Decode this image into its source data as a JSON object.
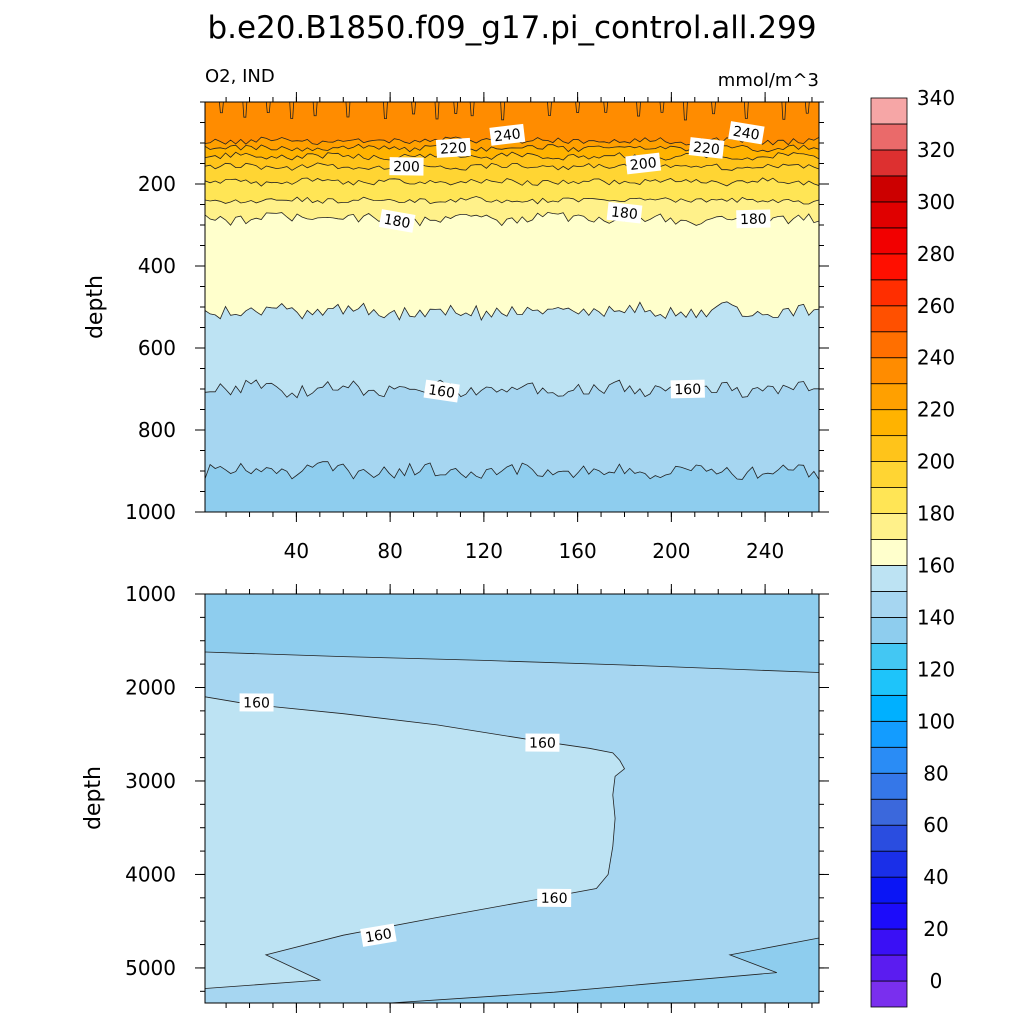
{
  "chart_data": {
    "type": "contour",
    "title": "b.e20.B1850.f09_g17.pi_control.all.299",
    "left_label": "O2, IND",
    "right_label": "mmol/m^3",
    "x_range": [
      1,
      263
    ],
    "x_ticks": [
      40,
      80,
      120,
      160,
      200,
      240
    ],
    "x_tick_labels": [
      "40",
      "80",
      "120",
      "160",
      "200",
      "240"
    ],
    "panels": [
      {
        "name": "upper",
        "ylabel": "depth",
        "y_range": [
          0,
          1000
        ],
        "y_reversed": true,
        "y_ticks": [
          200,
          400,
          600,
          800,
          1000
        ],
        "y_tick_labels": [
          "200",
          "400",
          "600",
          "800",
          "1000"
        ],
        "show_x_labels": true,
        "bands": [
          {
            "level": 250,
            "depth_bottom": 95,
            "color": "#ff8c00"
          },
          {
            "level": 240,
            "depth_bottom": 112,
            "color": "#ffa000"
          },
          {
            "level": 230,
            "depth_bottom": 132,
            "color": "#ffb300"
          },
          {
            "level": 220,
            "depth_bottom": 158,
            "color": "#ffc41a"
          },
          {
            "level": 210,
            "depth_bottom": 195,
            "color": "#ffd533"
          },
          {
            "level": 200,
            "depth_bottom": 240,
            "color": "#ffe555"
          },
          {
            "level": 190,
            "depth_bottom": 285,
            "color": "#fff18a"
          },
          {
            "level": 180,
            "depth_bottom": 510,
            "color": "#ffffcc"
          },
          {
            "level": 170,
            "depth_bottom": 700,
            "color": "#bde3f3"
          },
          {
            "level": 160,
            "depth_bottom": 900,
            "color": "#a6d6f1"
          },
          {
            "level": 150,
            "depth_bottom": 1000,
            "color": "#8ecdee"
          }
        ],
        "contour_labels": [
          {
            "text": "240",
            "x": 130,
            "depth": 80
          },
          {
            "text": "220",
            "x": 107,
            "depth": 112
          },
          {
            "text": "200",
            "x": 87,
            "depth": 157
          },
          {
            "text": "240",
            "x": 232,
            "depth": 75
          },
          {
            "text": "220",
            "x": 215,
            "depth": 112
          },
          {
            "text": "200",
            "x": 188,
            "depth": 150
          },
          {
            "text": "180",
            "x": 83,
            "depth": 290
          },
          {
            "text": "180",
            "x": 180,
            "depth": 270
          },
          {
            "text": "180",
            "x": 235,
            "depth": 285
          },
          {
            "text": "160",
            "x": 102,
            "depth": 705
          },
          {
            "text": "160",
            "x": 207,
            "depth": 700
          }
        ]
      },
      {
        "name": "lower",
        "ylabel": "depth",
        "y_range": [
          1000,
          5375
        ],
        "y_reversed": true,
        "y_ticks": [
          1000,
          2000,
          3000,
          4000,
          5000
        ],
        "y_tick_labels": [
          "1000",
          "2000",
          "3000",
          "4000",
          "5000"
        ],
        "show_x_labels": false,
        "regions": [
          {
            "level": 150,
            "color": "#8ecdee"
          },
          {
            "level": 160,
            "color": "#a6d6f1"
          },
          {
            "level": 170,
            "color": "#bde3f3"
          }
        ],
        "contour_labels": [
          {
            "text": "160",
            "x": 23,
            "depth": 2160
          },
          {
            "text": "160",
            "x": 145,
            "depth": 2590
          },
          {
            "text": "160",
            "x": 150,
            "depth": 4250
          },
          {
            "text": "160",
            "x": 75,
            "depth": 4650
          }
        ]
      }
    ],
    "colorbar": {
      "levels_min": 0,
      "levels_max": 350,
      "step": 10,
      "tick_labels": [
        "0",
        "20",
        "40",
        "60",
        "80",
        "100",
        "120",
        "140",
        "160",
        "180",
        "200",
        "220",
        "240",
        "260",
        "280",
        "300",
        "320",
        "340"
      ],
      "colors": [
        "#7a2fee",
        "#5b1cf0",
        "#3a10f5",
        "#1c0cfa",
        "#0a15f5",
        "#1a2fe8",
        "#2a4de0",
        "#3b68dc",
        "#3577e8",
        "#2a8cf5",
        "#139cff",
        "#00b0ff",
        "#1ec4fa",
        "#43c7f3",
        "#8ecdee",
        "#a6d6f1",
        "#bde3f3",
        "#ffffcc",
        "#fff18a",
        "#ffe555",
        "#ffd533",
        "#ffc41a",
        "#ffb300",
        "#ffa000",
        "#ff8c00",
        "#ff6f00",
        "#ff5000",
        "#ff2e00",
        "#ff0f00",
        "#f20000",
        "#e00000",
        "#cc0000",
        "#dd3030",
        "#ea6a6a",
        "#f6a6a6"
      ]
    }
  }
}
